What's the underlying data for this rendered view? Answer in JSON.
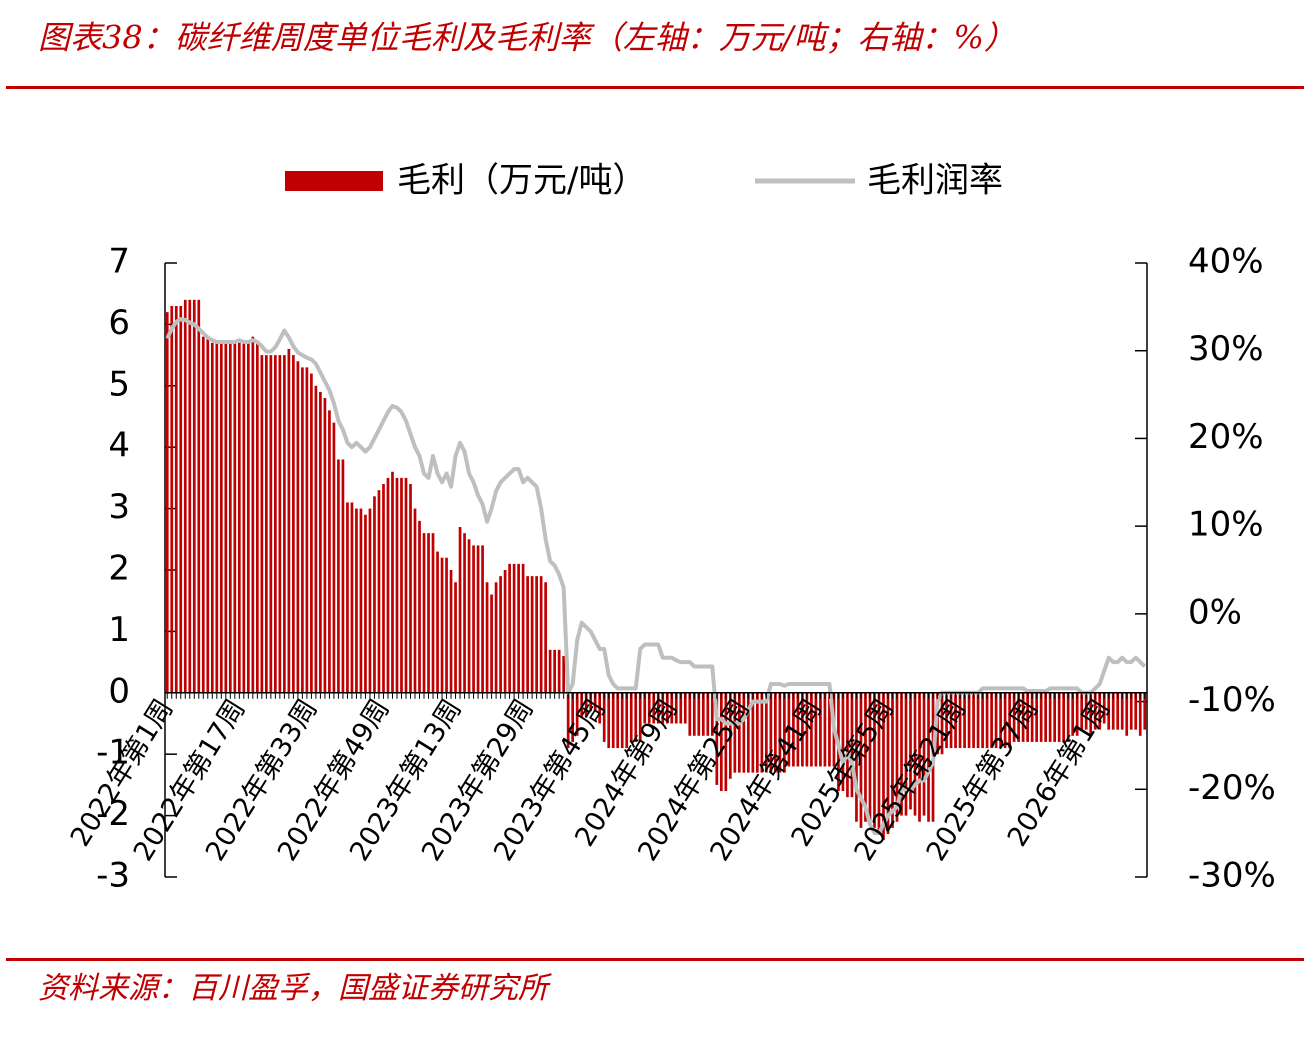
{
  "title": "图表38：碳纤维周度单位毛利及毛利率（左轴：万元/吨；右轴：%）",
  "source": "资料来源：百川盈孚，国盛证券研究所",
  "chart_data": {
    "type": "combo",
    "categories": [
      "2022年第1周",
      null,
      null,
      null,
      null,
      null,
      null,
      null,
      null,
      null,
      null,
      null,
      null,
      null,
      null,
      null,
      "2022年第17周",
      null,
      null,
      null,
      null,
      null,
      null,
      null,
      null,
      null,
      null,
      null,
      null,
      null,
      null,
      null,
      "2022年第33周",
      null,
      null,
      null,
      null,
      null,
      null,
      null,
      null,
      null,
      null,
      null,
      null,
      null,
      null,
      null,
      "2022年第49周",
      null,
      null,
      null,
      null,
      null,
      null,
      null,
      null,
      null,
      null,
      null,
      null,
      null,
      null,
      null,
      "2023年第13周",
      null,
      null,
      null,
      null,
      null,
      null,
      null,
      null,
      null,
      null,
      null,
      null,
      null,
      null,
      null,
      "2023年第29周",
      null,
      null,
      null,
      null,
      null,
      null,
      null,
      null,
      null,
      null,
      null,
      null,
      null,
      null,
      null,
      "2023年第45周",
      null,
      null,
      null,
      null,
      null,
      null,
      null,
      null,
      null,
      null,
      null,
      null,
      null,
      null,
      null,
      "2024年第9周",
      null,
      null,
      null,
      null,
      null,
      null,
      null,
      null,
      null,
      null,
      null,
      null,
      null,
      null,
      null,
      "2024年第25周",
      null,
      null,
      null,
      null,
      null,
      null,
      null,
      null,
      null,
      null,
      null,
      null,
      null,
      null,
      null,
      "2024年第41周",
      null,
      null,
      null,
      null,
      null,
      null,
      null,
      null,
      null,
      null,
      null,
      null,
      null,
      null,
      null,
      "2025年第5周",
      null,
      null,
      null,
      null,
      null,
      null,
      null,
      null,
      null,
      null,
      null,
      null,
      null,
      null,
      null,
      "2025年第21周",
      null,
      null,
      null,
      null,
      null,
      null,
      null,
      null,
      null,
      null,
      null,
      null,
      null,
      null,
      null,
      "2025年第37周",
      null,
      null,
      null,
      null,
      null,
      null,
      null,
      null,
      null,
      null,
      null,
      null,
      null,
      null,
      null,
      "2026年第1周",
      null,
      null,
      null,
      null,
      null,
      null,
      null,
      null,
      null
    ],
    "series": [
      {
        "name": "毛利（万元/吨）",
        "type": "bar",
        "color": "#c00000",
        "values": [
          6.2,
          6.3,
          6.3,
          6.3,
          6.4,
          6.4,
          6.4,
          6.4,
          5.8,
          5.8,
          5.7,
          5.7,
          5.7,
          5.7,
          5.7,
          5.7,
          5.7,
          5.7,
          5.7,
          5.8,
          5.7,
          5.5,
          5.5,
          5.5,
          5.5,
          5.5,
          5.5,
          5.6,
          5.5,
          5.4,
          5.3,
          5.3,
          5.2,
          5.0,
          4.9,
          4.8,
          4.6,
          4.4,
          3.8,
          3.8,
          3.1,
          3.1,
          3.0,
          3.0,
          2.9,
          3.0,
          3.2,
          3.3,
          3.4,
          3.5,
          3.6,
          3.5,
          3.5,
          3.5,
          3.4,
          3.0,
          2.8,
          2.6,
          2.6,
          2.6,
          2.3,
          2.2,
          2.2,
          2.0,
          1.8,
          2.7,
          2.6,
          2.5,
          2.4,
          2.4,
          2.4,
          1.8,
          1.6,
          1.8,
          1.9,
          2.0,
          2.1,
          2.1,
          2.1,
          2.1,
          1.9,
          1.9,
          1.9,
          1.9,
          1.8,
          0.7,
          0.7,
          0.7,
          0.6,
          -0.9,
          -0.8,
          -0.7,
          -0.4,
          -0.4,
          -0.3,
          -0.3,
          -0.5,
          -0.8,
          -0.9,
          -0.9,
          -0.9,
          -0.9,
          -0.9,
          -0.8,
          -0.8,
          -0.8,
          -0.5,
          -0.5,
          -0.5,
          -0.5,
          -0.5,
          -0.5,
          -0.5,
          -0.5,
          -0.5,
          -0.5,
          -0.7,
          -0.7,
          -0.7,
          -0.7,
          -0.7,
          -0.7,
          -1.5,
          -1.6,
          -1.6,
          -1.4,
          -1.3,
          -1.3,
          -1.3,
          -1.3,
          -1.3,
          -1.3,
          -1.3,
          -1.3,
          -1.3,
          -1.3,
          -1.3,
          -1.3,
          -1.2,
          -1.2,
          -1.2,
          -1.2,
          -1.2,
          -1.2,
          -1.2,
          -1.2,
          -1.2,
          -1.2,
          -1.2,
          -1.6,
          -1.6,
          -1.7,
          -1.7,
          -2.1,
          -2.2,
          -2.1,
          -2.1,
          -2.2,
          -2.3,
          -2.4,
          -2.3,
          -2.2,
          -2.1,
          -2.0,
          -2.0,
          -1.9,
          -2.0,
          -2.1,
          -2.0,
          -2.1,
          -2.1,
          -1.0,
          -1.0,
          -0.9,
          -0.9,
          -0.9,
          -0.9,
          -0.9,
          -0.9,
          -0.9,
          -0.9,
          -0.9,
          -0.9,
          -0.9,
          -0.9,
          -0.9,
          -0.9,
          -0.9,
          -0.8,
          -0.8,
          -0.8,
          -0.8,
          -0.8,
          -0.8,
          -0.8,
          -0.8,
          -0.8,
          -0.8,
          -0.8,
          -0.8,
          -0.8,
          -0.7,
          -0.7,
          -0.6,
          -0.6,
          -0.7,
          -0.6,
          -0.6,
          -0.5,
          -0.6,
          -0.6,
          -0.6,
          -0.6,
          -0.7,
          -0.6,
          -0.6,
          -0.7,
          -0.6
        ]
      },
      {
        "name": "毛利润率",
        "type": "line",
        "axis": "y2",
        "color": "#bfbfbf",
        "values": [
          31.4,
          32.5,
          33.3,
          33.6,
          33.5,
          33.2,
          33.0,
          32.5,
          32.0,
          31.5,
          31.2,
          31.0,
          31.0,
          31.0,
          31.0,
          31.0,
          31.2,
          31.0,
          31.0,
          31.2,
          31.0,
          30.5,
          29.9,
          29.9,
          30.4,
          31.3,
          32.3,
          31.5,
          30.5,
          29.8,
          29.5,
          29.2,
          29.0,
          28.5,
          27.5,
          26.5,
          25.5,
          24.0,
          22.0,
          21.0,
          19.5,
          19.0,
          19.5,
          19.0,
          18.5,
          19.0,
          20.0,
          21.0,
          22.0,
          23.0,
          23.7,
          23.5,
          23.0,
          22.0,
          20.5,
          19.0,
          18.0,
          16.0,
          15.5,
          18.0,
          16.0,
          15.0,
          16.0,
          14.5,
          18.0,
          19.5,
          18.5,
          16.0,
          15.0,
          13.5,
          12.5,
          10.5,
          12.0,
          14.0,
          15.0,
          15.5,
          16.0,
          16.5,
          16.5,
          15.0,
          15.5,
          15.0,
          14.5,
          12.0,
          8.5,
          6.0,
          5.5,
          4.5,
          3.0,
          -9.0,
          -8.0,
          -3.0,
          -1.0,
          -1.5,
          -2.0,
          -3.0,
          -4.0,
          -4.0,
          -7.0,
          -8.0,
          -8.5,
          -8.5,
          -8.5,
          -8.5,
          -8.5,
          -4.0,
          -3.5,
          -3.5,
          -3.5,
          -3.5,
          -5.0,
          -5.0,
          -5.0,
          -5.3,
          -5.5,
          -5.5,
          -5.5,
          -6.0,
          -6.0,
          -6.0,
          -6.0,
          -6.0,
          -12.0,
          -12.0,
          -12.5,
          -12.5,
          -12.5,
          -12.5,
          -12.0,
          -11.0,
          -10.0,
          -10.0,
          -10.0,
          -10.0,
          -8.0,
          -8.0,
          -8.0,
          -8.2,
          -8.0,
          -8.0,
          -8.0,
          -8.0,
          -8.0,
          -8.0,
          -8.0,
          -8.0,
          -8.0,
          -8.0,
          -13.0,
          -15.0,
          -17.0,
          -16.0,
          -17.0,
          -20.0,
          -21.0,
          -22.0,
          -24.0,
          -25.0,
          -25.0,
          -24.0,
          -23.0,
          -22.5,
          -22.0,
          -20.0,
          -20.0,
          -20.0,
          -19.5,
          -19.0,
          -19.0,
          -18.0,
          -17.0,
          -10.0,
          -9.0,
          -9.0,
          -9.0,
          -9.0,
          -9.0,
          -9.0,
          -9.0,
          -9.0,
          -9.0,
          -8.5,
          -8.5,
          -8.5,
          -8.5,
          -8.5,
          -8.5,
          -8.5,
          -8.5,
          -8.5,
          -8.5,
          -8.8,
          -8.8,
          -8.8,
          -8.8,
          -8.8,
          -8.5,
          -8.5,
          -8.5,
          -8.5,
          -8.5,
          -8.5,
          -8.5,
          -9.0,
          -9.0,
          -9.0,
          -8.5,
          -8.0,
          -6.5,
          -5.0,
          -5.5,
          -5.5,
          -5.0,
          -5.5,
          -5.5,
          -5.0,
          -5.5,
          -6.0
        ]
      }
    ],
    "ylim": [
      -3,
      7
    ],
    "yticks": [
      -3,
      -2,
      -1,
      0,
      1,
      2,
      3,
      4,
      5,
      6,
      7
    ],
    "y2lim": [
      -30,
      40
    ],
    "y2ticks": [
      {
        "value": -30,
        "label": "-30%"
      },
      {
        "value": -20,
        "label": "-20%"
      },
      {
        "value": -10,
        "label": "-10%"
      },
      {
        "value": 0,
        "label": "0%"
      },
      {
        "value": 10,
        "label": "10%"
      },
      {
        "value": 20,
        "label": "20%"
      },
      {
        "value": 30,
        "label": "30%"
      },
      {
        "value": 40,
        "label": "40%"
      }
    ],
    "legend": "top"
  }
}
